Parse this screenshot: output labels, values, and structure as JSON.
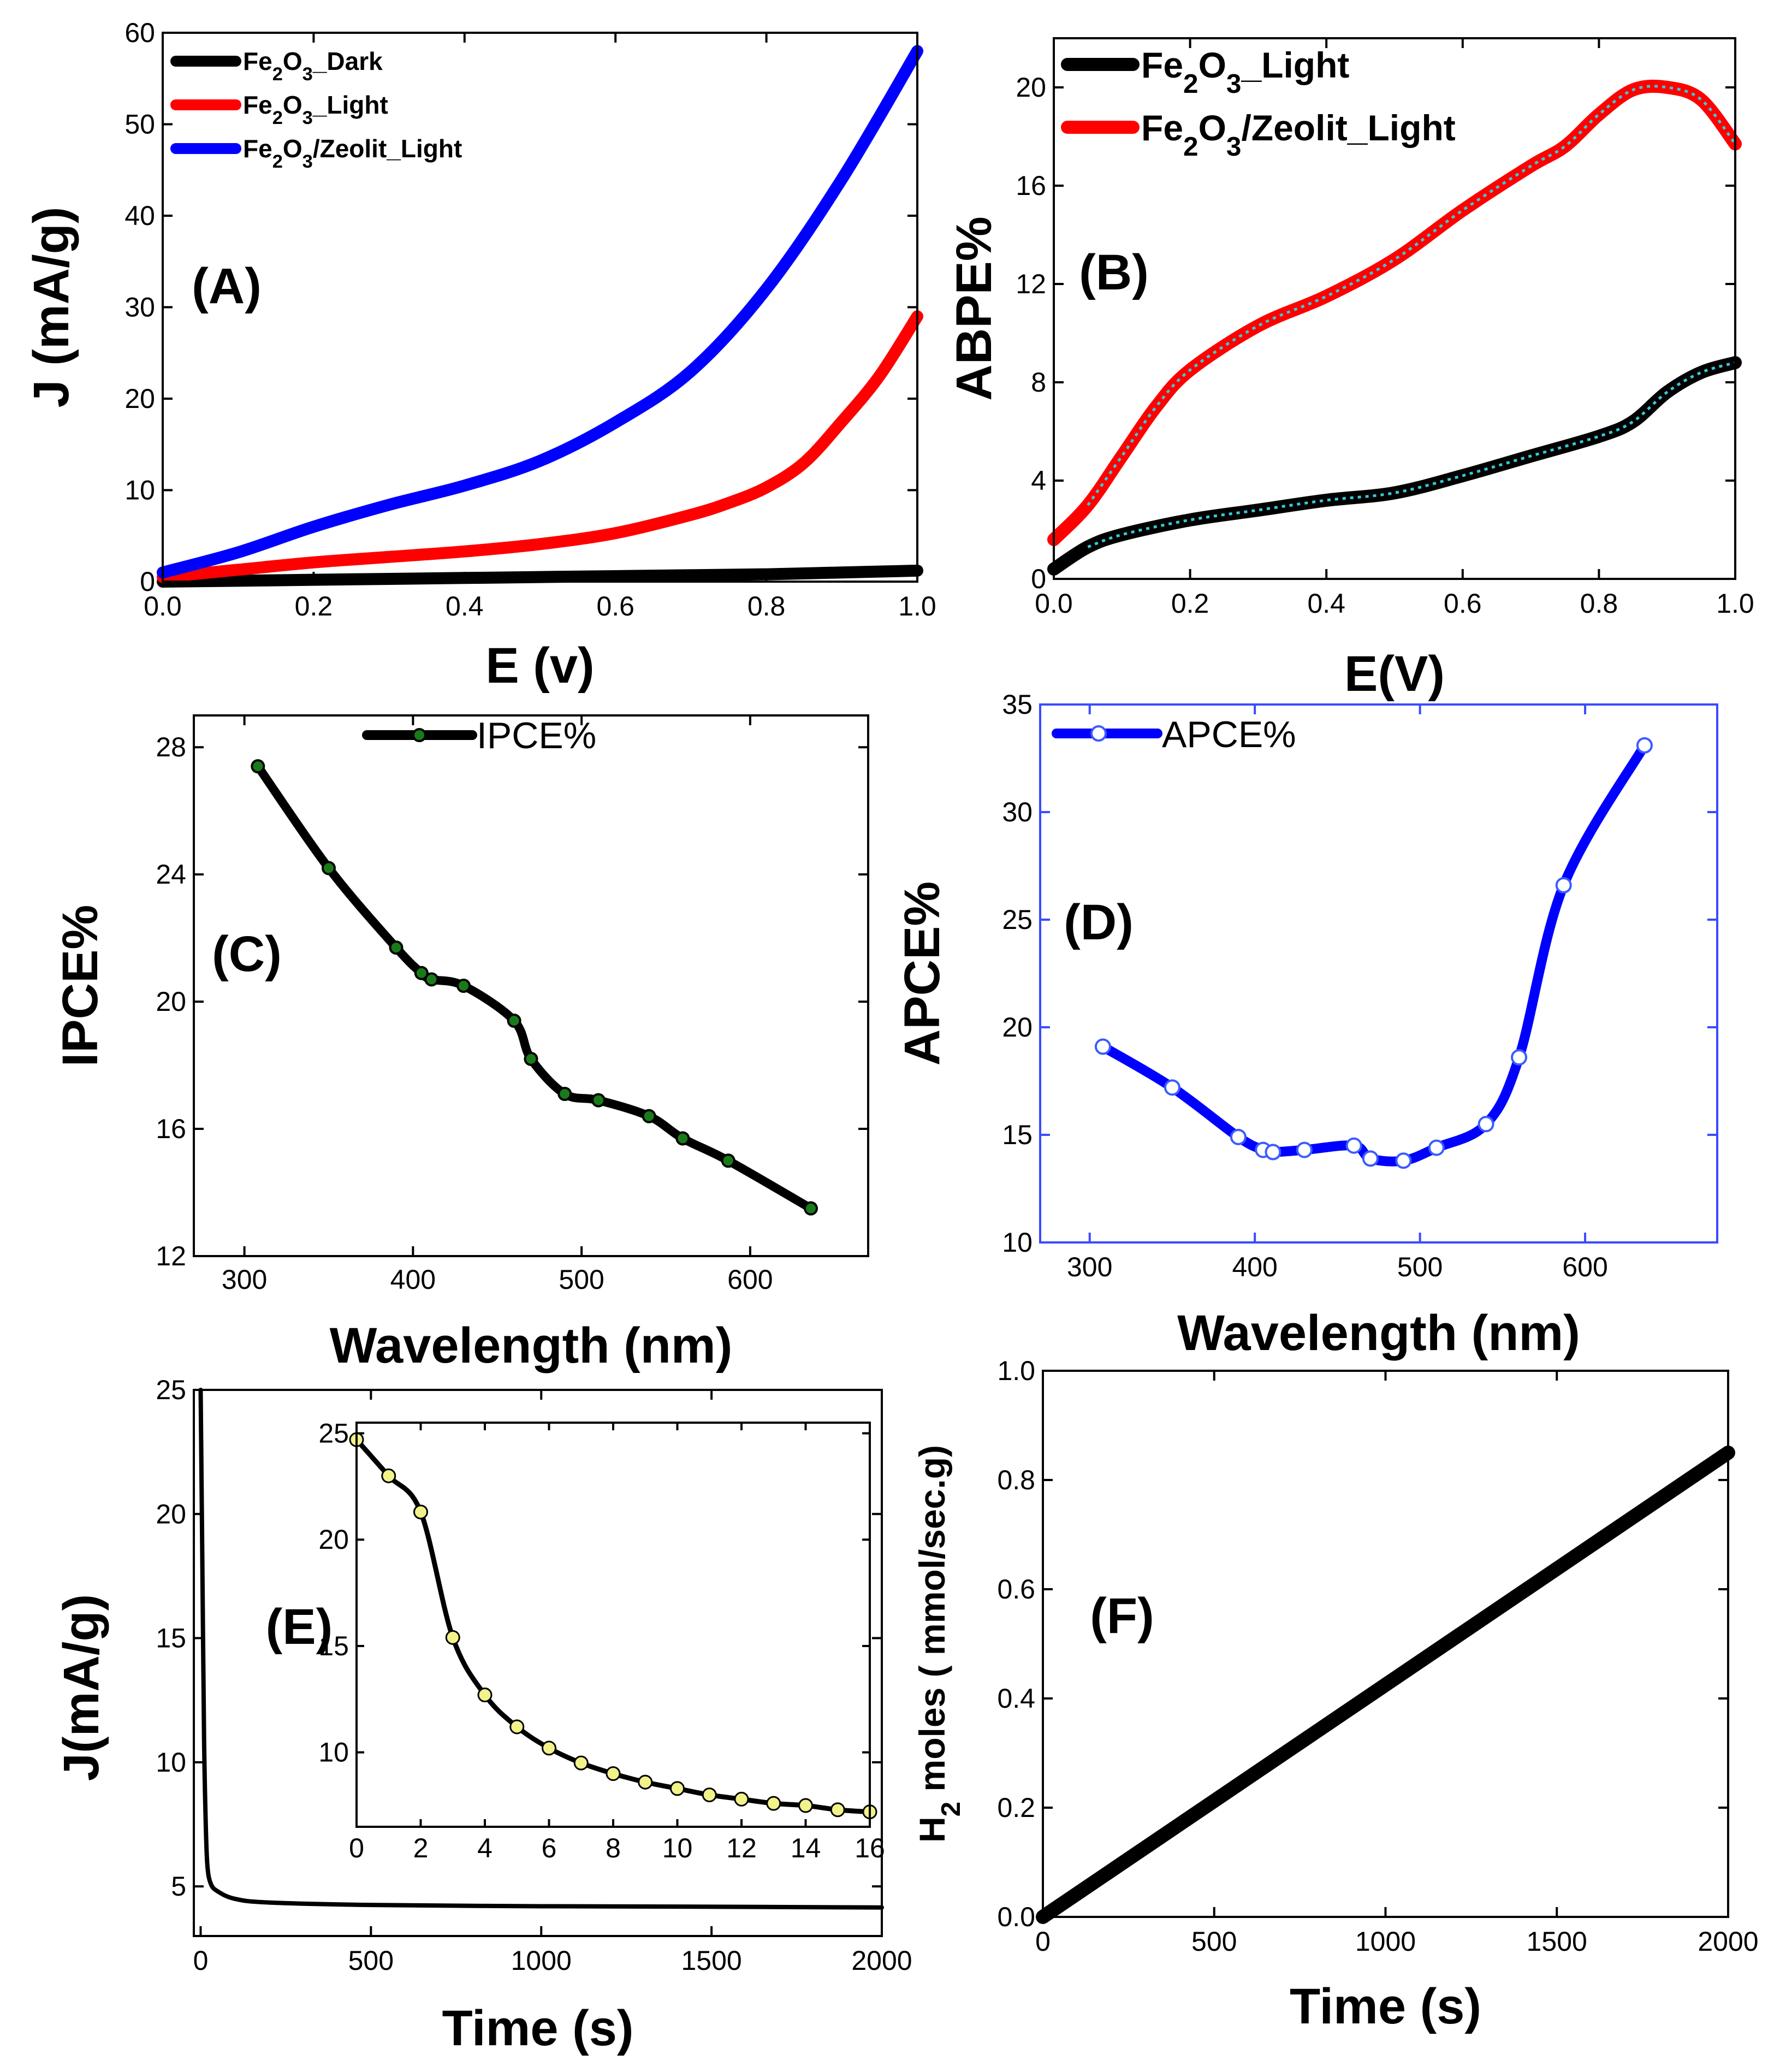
{
  "figure": {
    "description_labels": [
      "A",
      "B",
      "C",
      "D",
      "E",
      "F"
    ]
  },
  "chart_data": [
    {
      "id": "A",
      "type": "line",
      "panel_label": "(A)",
      "xlabel": "E (v)",
      "ylabel": "J (mA/g)",
      "xlim": [
        0,
        1
      ],
      "ylim": [
        0,
        60
      ],
      "xticks": [
        "0.0",
        "0.2",
        "0.4",
        "0.6",
        "0.8",
        "1.0"
      ],
      "yticks": [
        "0",
        "10",
        "20",
        "30",
        "40",
        "50",
        "60"
      ],
      "legend_position": "top-left",
      "series": [
        {
          "name": "Fe2O3_Dark",
          "name_parts": [
            "Fe",
            "2",
            "O",
            "3",
            "_Dark"
          ],
          "color": "#000000",
          "x": [
            0,
            0.1,
            0.2,
            0.3,
            0.4,
            0.5,
            0.6,
            0.7,
            0.8,
            0.9,
            1.0
          ],
          "y": [
            0.0,
            0.1,
            0.2,
            0.3,
            0.4,
            0.5,
            0.6,
            0.7,
            0.8,
            1.0,
            1.2
          ]
        },
        {
          "name": "Fe2O3_Light",
          "name_parts": [
            "Fe",
            "2",
            "O",
            "3",
            "_Light"
          ],
          "color": "#ff0000",
          "x": [
            0,
            0.1,
            0.2,
            0.3,
            0.4,
            0.5,
            0.6,
            0.7,
            0.75,
            0.8,
            0.85,
            0.9,
            0.95,
            1.0
          ],
          "y": [
            0.5,
            1.3,
            2.1,
            2.7,
            3.3,
            4.1,
            5.3,
            7.3,
            8.6,
            10.3,
            13.0,
            17.5,
            22.5,
            29.0
          ]
        },
        {
          "name": "Fe2O3/Zeolit_Light",
          "name_parts": [
            "Fe",
            "2",
            "O",
            "3",
            "/Zeolit_Light"
          ],
          "color": "#0000ff",
          "x": [
            0,
            0.1,
            0.2,
            0.3,
            0.4,
            0.5,
            0.6,
            0.7,
            0.8,
            0.9,
            1.0
          ],
          "y": [
            1.0,
            3.2,
            6.0,
            8.4,
            10.5,
            13.2,
            17.4,
            23.0,
            32.0,
            44.0,
            58.0
          ]
        }
      ]
    },
    {
      "id": "B",
      "type": "line",
      "panel_label": "(B)",
      "xlabel": "E(V)",
      "ylabel": "ABPE%",
      "xlim": [
        0,
        1
      ],
      "ylim": [
        0,
        22
      ],
      "xticks": [
        "0.0",
        "0.2",
        "0.4",
        "0.6",
        "0.8",
        "1.0"
      ],
      "yticks": [
        "0",
        "4",
        "8",
        "12",
        "16",
        "20"
      ],
      "legend_position": "top-left",
      "series": [
        {
          "name": "Fe2O3_Light",
          "name_parts": [
            "Fe",
            "2",
            "O",
            "3",
            "_Light"
          ],
          "color": "#000000",
          "x": [
            0,
            0.05,
            0.1,
            0.2,
            0.3,
            0.4,
            0.5,
            0.6,
            0.7,
            0.8,
            0.85,
            0.9,
            0.95,
            1.0
          ],
          "y": [
            0.4,
            1.3,
            1.8,
            2.4,
            2.8,
            3.2,
            3.5,
            4.2,
            5.0,
            5.8,
            6.4,
            7.6,
            8.4,
            8.8
          ]
        },
        {
          "name": "Fe2O3/Zeolit_Light",
          "name_parts": [
            "Fe",
            "2",
            "O",
            "3",
            "/Zeolit_Light"
          ],
          "color": "#ff0000",
          "x": [
            0,
            0.05,
            0.1,
            0.15,
            0.2,
            0.3,
            0.4,
            0.5,
            0.6,
            0.7,
            0.75,
            0.8,
            0.85,
            0.9,
            0.95,
            1.0
          ],
          "y": [
            1.6,
            3.0,
            5.0,
            7.0,
            8.5,
            10.3,
            11.5,
            13.0,
            15.0,
            16.8,
            17.6,
            18.9,
            19.9,
            20.0,
            19.5,
            17.7
          ]
        }
      ]
    },
    {
      "id": "C",
      "type": "line",
      "panel_label": "(C)",
      "xlabel": "Wavelength (nm)",
      "ylabel": "IPCE%",
      "xlim": [
        270,
        670
      ],
      "ylim": [
        12,
        29
      ],
      "xticks": [
        "300",
        "400",
        "500",
        "600"
      ],
      "yticks": [
        "12",
        "16",
        "20",
        "24",
        "28"
      ],
      "legend_position": "top-center",
      "series": [
        {
          "name": "IPCE%",
          "color": "#000000",
          "marker_color": "#1a7a1a",
          "x": [
            308,
            350,
            390,
            405,
            411,
            430,
            460,
            470,
            490,
            510,
            540,
            560,
            587,
            636
          ],
          "y": [
            27.4,
            24.2,
            21.7,
            20.9,
            20.7,
            20.5,
            19.4,
            18.2,
            17.1,
            16.9,
            16.4,
            15.7,
            15.0,
            13.5
          ]
        }
      ]
    },
    {
      "id": "D",
      "type": "line",
      "panel_label": "(D)",
      "xlabel": "Wavelength (nm)",
      "ylabel": "APCE%",
      "xlim": [
        270,
        680
      ],
      "ylim": [
        10,
        35
      ],
      "xticks": [
        "300",
        "400",
        "500",
        "600"
      ],
      "yticks": [
        "10",
        "15",
        "20",
        "25",
        "30",
        "35"
      ],
      "legend_position": "top-left",
      "series": [
        {
          "name": "APCE%",
          "color": "#0000ff",
          "x": [
            308,
            350,
            390,
            405,
            411,
            430,
            460,
            470,
            490,
            510,
            540,
            560,
            587,
            636
          ],
          "y": [
            19.1,
            17.2,
            14.9,
            14.3,
            14.2,
            14.3,
            14.5,
            13.9,
            13.8,
            14.4,
            15.5,
            18.6,
            26.6,
            33.1
          ]
        }
      ]
    },
    {
      "id": "E",
      "type": "line",
      "panel_label": "(E)",
      "xlabel": "Time (s)",
      "ylabel": "J(mA/g)",
      "xlim": [
        -20,
        2000
      ],
      "ylim": [
        3,
        25
      ],
      "xticks": [
        "0",
        "500",
        "1000",
        "1500",
        "2000"
      ],
      "yticks": [
        "5",
        "10",
        "15",
        "20",
        "25"
      ],
      "series": [
        {
          "name": "J",
          "color": "#000000",
          "x": [
            0,
            5,
            10,
            15,
            20,
            30,
            50,
            100,
            200,
            500,
            1000,
            1500,
            2000
          ],
          "y": [
            25,
            18,
            11,
            7.5,
            5.8,
            5.1,
            4.8,
            4.5,
            4.35,
            4.25,
            4.2,
            4.18,
            4.15
          ]
        }
      ],
      "inset": {
        "xlim": [
          0,
          16
        ],
        "ylim": [
          6.5,
          25.5
        ],
        "xticks": [
          "0",
          "2",
          "4",
          "6",
          "8",
          "10",
          "12",
          "14",
          "16"
        ],
        "yticks": [
          "10",
          "15",
          "20",
          "25"
        ],
        "series": [
          {
            "name": "J inset",
            "color": "#000000",
            "marker_color": "#f2f28a",
            "x": [
              0,
              1,
              2,
              3,
              4,
              5,
              6,
              7,
              8,
              9,
              10,
              11,
              12,
              13,
              14,
              15,
              16
            ],
            "y": [
              24.7,
              23.0,
              21.3,
              15.4,
              12.7,
              11.2,
              10.2,
              9.5,
              9.0,
              8.6,
              8.3,
              8.0,
              7.8,
              7.6,
              7.5,
              7.3,
              7.2
            ]
          }
        ]
      }
    },
    {
      "id": "F",
      "type": "line",
      "panel_label": "(F)",
      "xlabel": "Time (s)",
      "ylabel": "H2 moles ( mmol/sec.g)",
      "ylabel_parts": [
        "H",
        "2",
        " moles ( mmol/sec.g)"
      ],
      "xlim": [
        0,
        2000
      ],
      "ylim": [
        0,
        1
      ],
      "xticks": [
        "0",
        "500",
        "1000",
        "1500",
        "2000"
      ],
      "yticks": [
        "0.0",
        "0.2",
        "0.4",
        "0.6",
        "0.8",
        "1.0"
      ],
      "series": [
        {
          "name": "H2",
          "color": "#000000",
          "x": [
            0,
            2000
          ],
          "y": [
            0.0,
            0.85
          ]
        }
      ]
    }
  ]
}
